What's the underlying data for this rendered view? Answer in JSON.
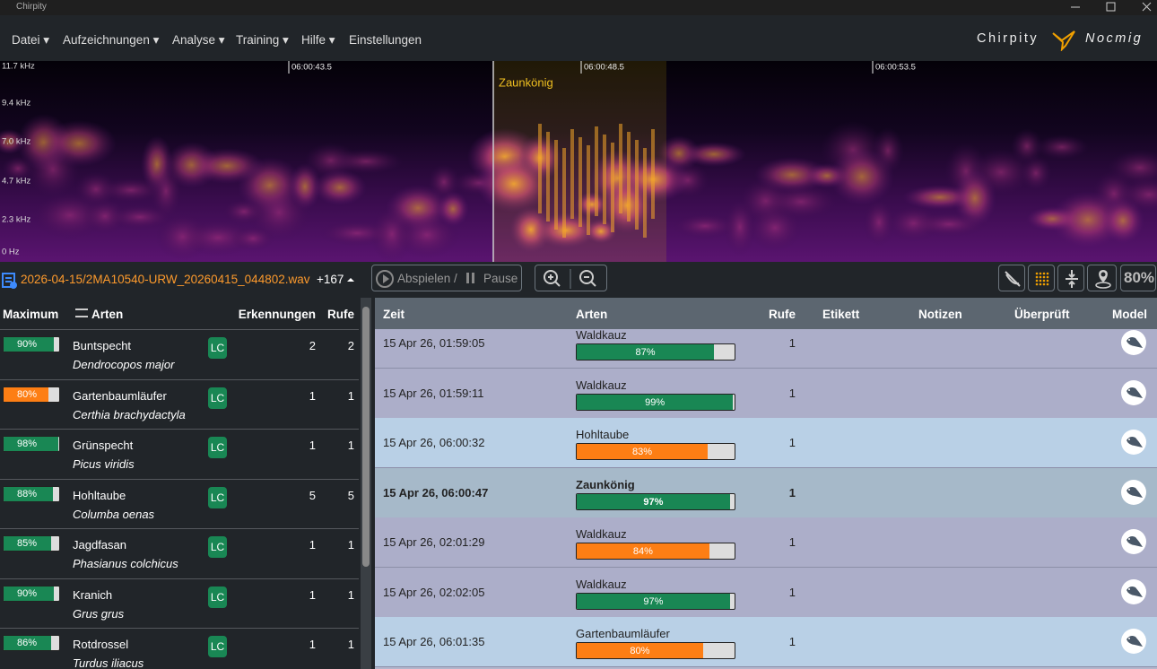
{
  "window": {
    "title": "Chirpity"
  },
  "menu": [
    "Datei",
    "Aufzeichnungen",
    "Analyse",
    "Training",
    "Hilfe",
    "Einstellungen"
  ],
  "brand": {
    "name": "Chirpity",
    "mode": "Nocmig"
  },
  "spectrogram": {
    "frequency_labels": [
      "11.7 kHz",
      "9.4 kHz",
      "7.0 kHz",
      "4.7 kHz",
      "2.3 kHz",
      "0   Hz"
    ],
    "time_labels": [
      "06:00:43.5",
      "06:00:48.5",
      "06:00:53.5"
    ],
    "region_label": "Zaunkönig"
  },
  "toolbar": {
    "file": "2026-04-15/2MA10540-URW_20260415_044802.wav",
    "count": "+167",
    "play": "Abspielen /",
    "pause": "Pause",
    "zoom_label": "80%"
  },
  "summary": {
    "headers": [
      "Maximum",
      "Arten",
      "Erkennungen",
      "Rufe"
    ],
    "rows": [
      {
        "max": {
          "value": 90,
          "label": "90%"
        },
        "color": "#198754",
        "name": "Buntspecht",
        "latin": "Dendrocopos major",
        "status": "LC",
        "detections": 2,
        "calls": 2
      },
      {
        "max": {
          "value": 80,
          "label": "80%"
        },
        "color": "#fd7e14",
        "name": "Gartenbaumläufer",
        "latin": "Certhia brachydactyla",
        "status": "LC",
        "detections": 1,
        "calls": 1
      },
      {
        "max": {
          "value": 98,
          "label": "98%"
        },
        "color": "#198754",
        "name": "Grünspecht",
        "latin": "Picus viridis",
        "status": "LC",
        "detections": 1,
        "calls": 1
      },
      {
        "max": {
          "value": 88,
          "label": "88%"
        },
        "color": "#198754",
        "name": "Hohltaube",
        "latin": "Columba oenas",
        "status": "LC",
        "detections": 5,
        "calls": 5
      },
      {
        "max": {
          "value": 85,
          "label": "85%"
        },
        "color": "#198754",
        "name": "Jagdfasan",
        "latin": "Phasianus colchicus",
        "status": "LC",
        "detections": 1,
        "calls": 1
      },
      {
        "max": {
          "value": 90,
          "label": "90%"
        },
        "color": "#198754",
        "name": "Kranich",
        "latin": "Grus grus",
        "status": "LC",
        "detections": 1,
        "calls": 1
      },
      {
        "max": {
          "value": 86,
          "label": "86%"
        },
        "color": "#198754",
        "name": "Rotdrossel",
        "latin": "Turdus iliacus",
        "status": "LC",
        "detections": 1,
        "calls": 1
      }
    ]
  },
  "results": {
    "headers": [
      "Zeit",
      "Arten",
      "Rufe",
      "Etikett",
      "Notizen",
      "Überprüft",
      "Model"
    ],
    "rows": [
      {
        "time": "15 Apr 26, 01:59:05",
        "species": "Waldkauz",
        "score": {
          "value": 87,
          "label": "87%"
        },
        "color": "#198754",
        "calls": 1
      },
      {
        "time": "15 Apr 26, 01:59:11",
        "species": "Waldkauz",
        "score": {
          "value": 99,
          "label": "99%"
        },
        "color": "#198754",
        "calls": 1
      },
      {
        "time": "15 Apr 26, 06:00:32",
        "species": "Hohltaube",
        "score": {
          "value": 83,
          "label": "83%"
        },
        "color": "#fd7e14",
        "calls": 1
      },
      {
        "time": "15 Apr 26, 06:00:47",
        "species": "Zaunkönig",
        "score": {
          "value": 97,
          "label": "97%"
        },
        "color": "#198754",
        "calls": 1
      },
      {
        "time": "15 Apr 26, 02:01:29",
        "species": "Waldkauz",
        "score": {
          "value": 84,
          "label": "84%"
        },
        "color": "#fd7e14",
        "calls": 1
      },
      {
        "time": "15 Apr 26, 02:02:05",
        "species": "Waldkauz",
        "score": {
          "value": 97,
          "label": "97%"
        },
        "color": "#198754",
        "calls": 1
      },
      {
        "time": "15 Apr 26, 06:01:35",
        "species": "Gartenbaumläufer",
        "score": {
          "value": 80,
          "label": "80%"
        },
        "color": "#fd7e14",
        "calls": 1
      }
    ]
  }
}
